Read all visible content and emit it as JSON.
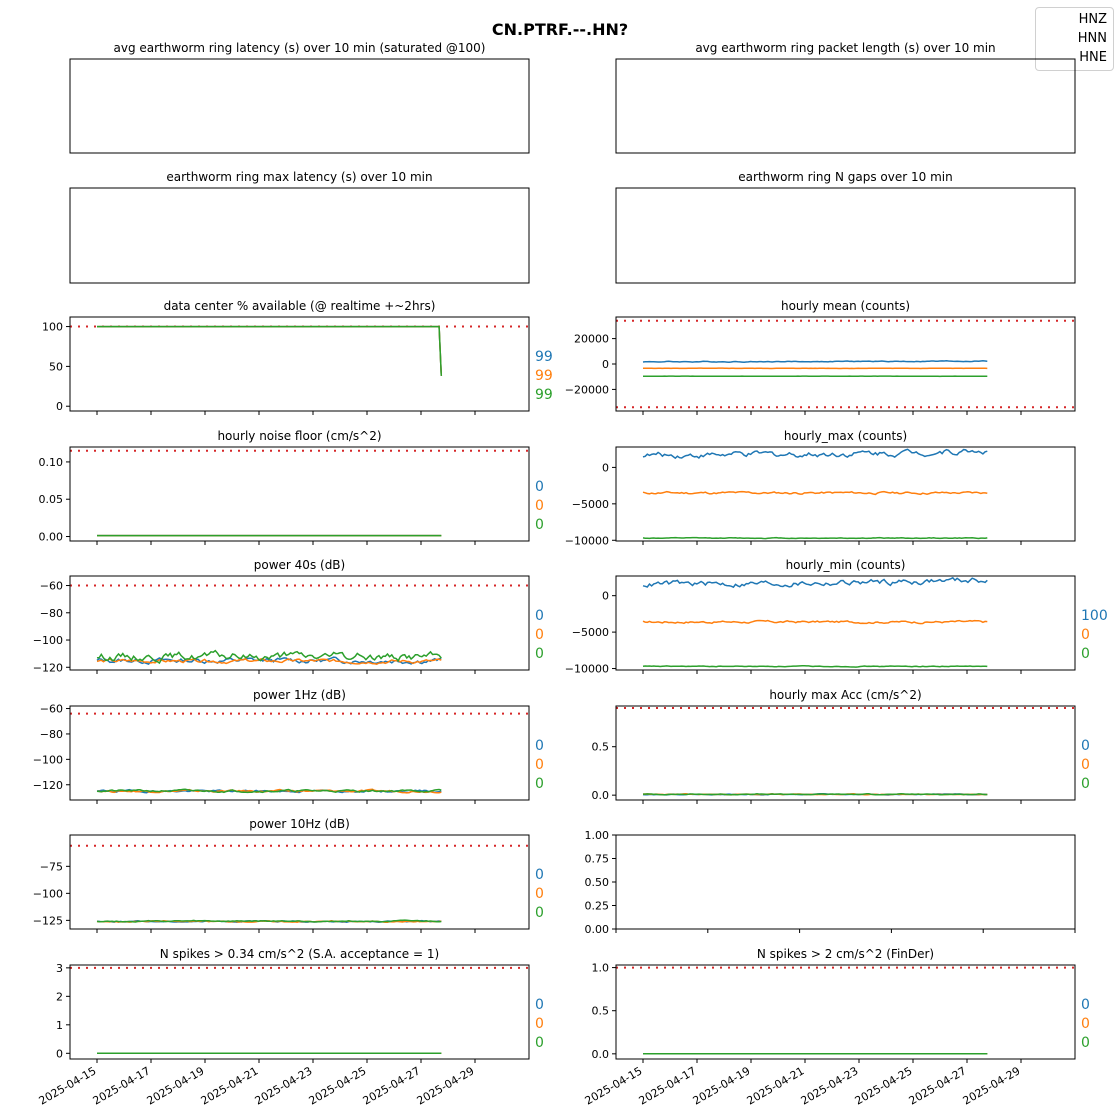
{
  "figure_title": "CN.PTRF.--.HN?",
  "legend": {
    "placement": "top-right",
    "entries": [
      "HNZ",
      "HNN",
      "HNE"
    ]
  },
  "colors": {
    "HNZ": "#1f77b4",
    "HNN": "#ff7f0e",
    "HNE": "#2ca02c",
    "threshold": "#d62728"
  },
  "x_axis": {
    "type": "date",
    "range": [
      "2025-04-14",
      "2025-05-01"
    ],
    "tick_labels": [
      "2025-04-15",
      "2025-04-17",
      "2025-04-19",
      "2025-04-21",
      "2025-04-23",
      "2025-04-25",
      "2025-04-27",
      "2025-04-29"
    ],
    "data_start": "2025-04-15",
    "data_end": "2025-04-27T18:00"
  },
  "chart_data": [
    {
      "id": "p0",
      "type": "line",
      "title": "avg earthworm ring latency (s)   over 10 min (saturated @100)",
      "empty": true
    },
    {
      "id": "p1",
      "type": "line",
      "title": "avg earthworm ring packet length (s)   over 10 min",
      "empty": true
    },
    {
      "id": "p2",
      "type": "line",
      "title": "earthworm ring max latency (s)   over 10 min",
      "empty": true
    },
    {
      "id": "p3",
      "type": "line",
      "title": "earthworm ring N gaps   over 10 min",
      "empty": true
    },
    {
      "id": "p4",
      "type": "line",
      "title": "data center % available (@ realtime +~2hrs)",
      "ylim": [
        -6,
        112
      ],
      "yticks": [
        0,
        50,
        100
      ],
      "ytick_labels": [
        "0",
        "50",
        "100"
      ],
      "thresholds": [
        100
      ],
      "side_values": [
        "99",
        "99",
        "99"
      ],
      "series": [
        {
          "name": "HNZ",
          "base": 100,
          "amp": 0,
          "seed": 1,
          "end_drop": 38
        },
        {
          "name": "HNN",
          "base": 100,
          "amp": 0,
          "seed": 2,
          "end_drop": 38
        },
        {
          "name": "HNE",
          "base": 100,
          "amp": 0,
          "seed": 3,
          "end_drop": 38
        }
      ]
    },
    {
      "id": "p5",
      "type": "line",
      "title": "hourly mean (counts)",
      "ylim": [
        -37000,
        37000
      ],
      "yticks": [
        -20000,
        0,
        20000
      ],
      "ytick_labels": [
        "−20000",
        "0",
        "20000"
      ],
      "thresholds": [
        34000,
        -34000
      ],
      "side_values": [],
      "series": [
        {
          "name": "HNZ",
          "base": 1800,
          "amp": 250,
          "seed": 4,
          "trend": 500
        },
        {
          "name": "HNN",
          "base": -3400,
          "amp": 80,
          "seed": 5
        },
        {
          "name": "HNE",
          "base": -9600,
          "amp": 60,
          "seed": 6
        }
      ]
    },
    {
      "id": "p6",
      "type": "line",
      "title": "hourly noise floor (cm/s^2)",
      "ylim": [
        -0.006,
        0.12
      ],
      "yticks": [
        0.0,
        0.05,
        0.1
      ],
      "ytick_labels": [
        "0.00",
        "0.05",
        "0.10"
      ],
      "thresholds": [
        0.115
      ],
      "side_values": [
        "0",
        "0",
        "0"
      ],
      "series": [
        {
          "name": "HNZ",
          "base": 0.0012,
          "amp": 0,
          "seed": 7
        },
        {
          "name": "HNN",
          "base": 0.0012,
          "amp": 0,
          "seed": 8
        },
        {
          "name": "HNE",
          "base": 0.0012,
          "amp": 0,
          "seed": 9
        }
      ]
    },
    {
      "id": "p7",
      "type": "line",
      "title": "hourly_max (counts)",
      "ylim": [
        -10100,
        2800
      ],
      "yticks": [
        -10000,
        -5000,
        0
      ],
      "ytick_labels": [
        "−10000",
        "−5000",
        "0"
      ],
      "thresholds": [],
      "side_values": [],
      "series": [
        {
          "name": "HNZ",
          "base": 1700,
          "amp": 300,
          "seed": 10,
          "trend": 600
        },
        {
          "name": "HNN",
          "base": -3500,
          "amp": 120,
          "seed": 11
        },
        {
          "name": "HNE",
          "base": -9700,
          "amp": 40,
          "seed": 12
        }
      ]
    },
    {
      "id": "p8",
      "type": "line",
      "title": "power 40s (dB)",
      "ylim": [
        -122,
        -53
      ],
      "yticks": [
        -120,
        -100,
        -80,
        -60
      ],
      "ytick_labels": [
        "−120",
        "−100",
        "−80",
        "−60"
      ],
      "thresholds": [
        -60
      ],
      "side_values": [
        "0",
        "0",
        "0"
      ],
      "series": [
        {
          "name": "HNZ",
          "base": -115,
          "amp": 1.4,
          "seed": 13
        },
        {
          "name": "HNN",
          "base": -115.5,
          "amp": 1.0,
          "seed": 14
        },
        {
          "name": "HNE",
          "base": -112,
          "amp": 2.2,
          "seed": 15
        }
      ]
    },
    {
      "id": "p9",
      "type": "line",
      "title": "hourly_min (counts)",
      "ylim": [
        -10200,
        2700
      ],
      "yticks": [
        -10000,
        -5000,
        0
      ],
      "ytick_labels": [
        "−10000",
        "−5000",
        "0"
      ],
      "thresholds": [],
      "side_values": [
        "100",
        "0",
        "0"
      ],
      "series": [
        {
          "name": "HNZ",
          "base": 1600,
          "amp": 300,
          "seed": 16,
          "trend": 600
        },
        {
          "name": "HNN",
          "base": -3600,
          "amp": 120,
          "seed": 17
        },
        {
          "name": "HNE",
          "base": -9700,
          "amp": 40,
          "seed": 18
        }
      ]
    },
    {
      "id": "p10",
      "type": "line",
      "title": "power 1Hz (dB)",
      "ylim": [
        -132,
        -58
      ],
      "yticks": [
        -120,
        -100,
        -80,
        -60
      ],
      "ytick_labels": [
        "−120",
        "−100",
        "−80",
        "−60"
      ],
      "thresholds": [
        -64
      ],
      "side_values": [
        "0",
        "0",
        "0"
      ],
      "series": [
        {
          "name": "HNZ",
          "base": -125,
          "amp": 0.6,
          "seed": 19
        },
        {
          "name": "HNN",
          "base": -125,
          "amp": 0.6,
          "seed": 20
        },
        {
          "name": "HNE",
          "base": -124.8,
          "amp": 0.6,
          "seed": 21
        }
      ]
    },
    {
      "id": "p11",
      "type": "line",
      "title": "hourly max Acc (cm/s^2)",
      "ylim": [
        -0.05,
        0.92
      ],
      "yticks": [
        0.0,
        0.5
      ],
      "ytick_labels": [
        "0.0",
        "0.5"
      ],
      "thresholds": [
        0.9
      ],
      "side_values": [
        "0",
        "0",
        "0"
      ],
      "series": [
        {
          "name": "HNZ",
          "base": 0.008,
          "amp": 0.003,
          "seed": 22
        },
        {
          "name": "HNN",
          "base": 0.008,
          "amp": 0.003,
          "seed": 23
        },
        {
          "name": "HNE",
          "base": 0.009,
          "amp": 0.003,
          "seed": 24
        }
      ]
    },
    {
      "id": "p12",
      "type": "line",
      "title": "power 10Hz (dB)",
      "ylim": [
        -133,
        -46
      ],
      "yticks": [
        -125,
        -100,
        -75
      ],
      "ytick_labels": [
        "−125",
        "−100",
        "−75"
      ],
      "thresholds": [
        -56
      ],
      "side_values": [
        "0",
        "0",
        "0"
      ],
      "series": [
        {
          "name": "HNZ",
          "base": -126,
          "amp": 0.4,
          "seed": 25
        },
        {
          "name": "HNN",
          "base": -126,
          "amp": 0.4,
          "seed": 26
        },
        {
          "name": "HNE",
          "base": -125.8,
          "amp": 0.4,
          "seed": 27
        }
      ]
    },
    {
      "id": "p13",
      "type": "line",
      "title": "",
      "ylim": [
        0,
        1
      ],
      "yticks": [
        0,
        0.25,
        0.5,
        0.75,
        1.0
      ],
      "ytick_labels": [
        "0.00",
        "0.25",
        "0.50",
        "0.75",
        "1.00"
      ],
      "thresholds": [],
      "side_values": [],
      "series": [],
      "plain_x": true
    },
    {
      "id": "p14",
      "type": "line",
      "title": "N spikes > 0.34 cm/s^2 (S.A. acceptance = 1)",
      "ylim": [
        -0.2,
        3.1
      ],
      "yticks": [
        0,
        1,
        2,
        3
      ],
      "ytick_labels": [
        "0",
        "1",
        "2",
        "3"
      ],
      "thresholds": [
        3
      ],
      "side_values": [
        "0",
        "0",
        "0"
      ],
      "show_date_labels": true,
      "series": [
        {
          "name": "HNZ",
          "base": 0,
          "amp": 0,
          "seed": 28
        },
        {
          "name": "HNN",
          "base": 0,
          "amp": 0,
          "seed": 29
        },
        {
          "name": "HNE",
          "base": 0,
          "amp": 0,
          "seed": 30
        }
      ]
    },
    {
      "id": "p15",
      "type": "line",
      "title": "N spikes > 2 cm/s^2 (FinDer)",
      "ylim": [
        -0.06,
        1.03
      ],
      "yticks": [
        0.0,
        0.5,
        1.0
      ],
      "ytick_labels": [
        "0.0",
        "0.5",
        "1.0"
      ],
      "thresholds": [
        1
      ],
      "side_values": [
        "0",
        "0",
        "0"
      ],
      "show_date_labels": true,
      "series": [
        {
          "name": "HNZ",
          "base": 0,
          "amp": 0,
          "seed": 31
        },
        {
          "name": "HNN",
          "base": 0,
          "amp": 0,
          "seed": 32
        },
        {
          "name": "HNE",
          "base": 0,
          "amp": 0,
          "seed": 33
        }
      ]
    }
  ]
}
